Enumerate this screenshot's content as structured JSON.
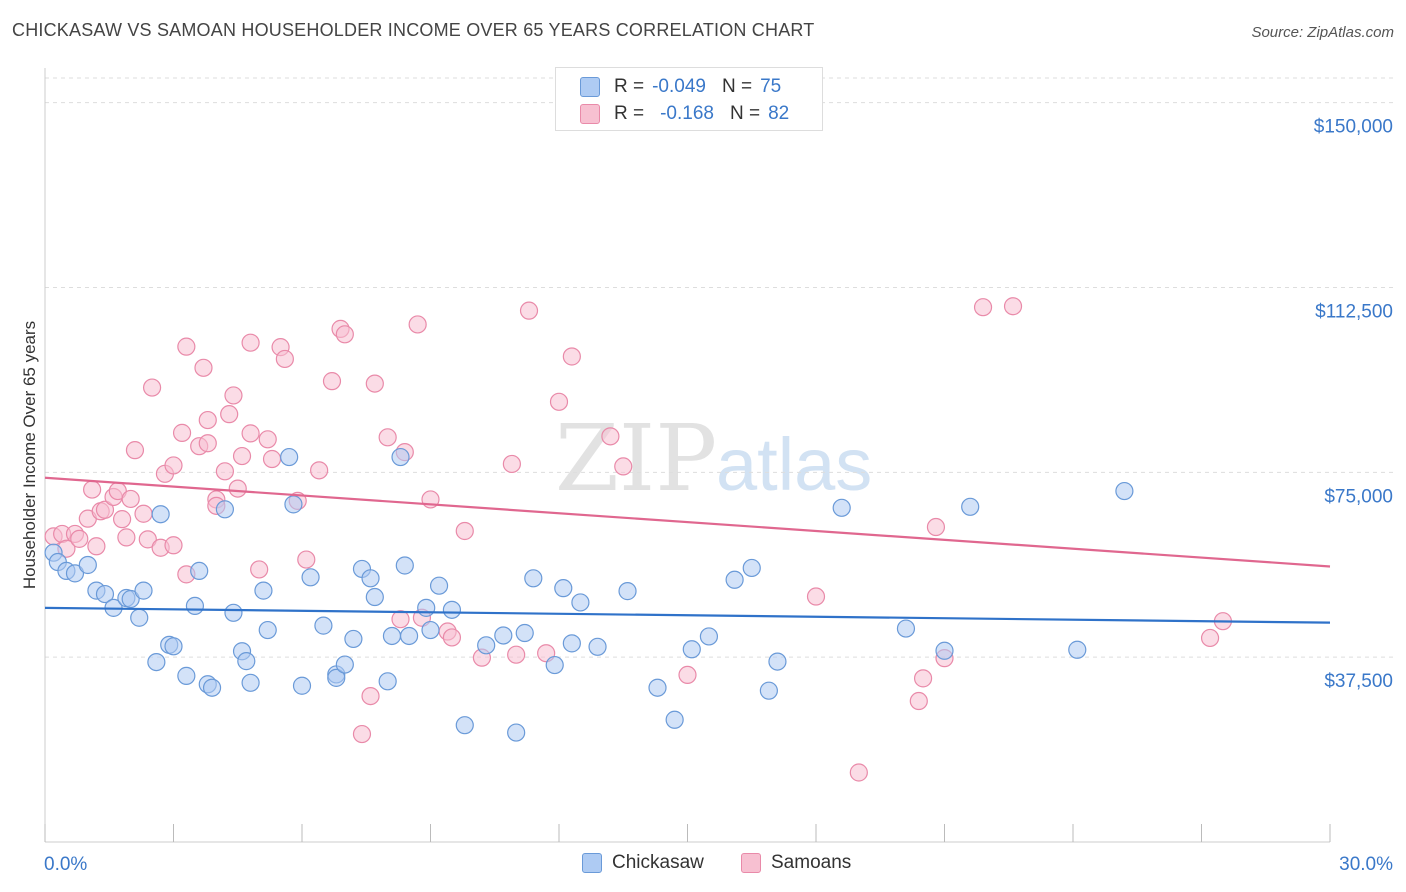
{
  "title": "CHICKASAW VS SAMOAN HOUSEHOLDER INCOME OVER 65 YEARS CORRELATION CHART",
  "source": "Source: ZipAtlas.com",
  "watermark": {
    "zip": "ZIP",
    "atlas": "atlas"
  },
  "legend": {
    "rows": [
      {
        "r_label": "R =",
        "r_value": "-0.049",
        "n_label": "N =",
        "n_value": "75"
      },
      {
        "r_label": "R =",
        "r_value": "-0.168",
        "n_label": "N =",
        "n_value": "82"
      }
    ]
  },
  "bottom_legend": [
    {
      "label": "Chickasaw"
    },
    {
      "label": "Samoans"
    }
  ],
  "colors": {
    "blue_fill": "#aecbf3",
    "blue_stroke": "#6a9ad8",
    "blue_line": "#2f72c9",
    "pink_fill": "#f7c0d1",
    "pink_stroke": "#e98aa9",
    "pink_line": "#e0678f",
    "tick_text": "#3a78c9",
    "grid": "#dddddd"
  },
  "chart_data": {
    "type": "scatter",
    "title": "CHICKASAW VS SAMOAN HOUSEHOLDER INCOME OVER 65 YEARS CORRELATION CHART",
    "xlabel": "",
    "ylabel": "Householder Income Over 65 years",
    "xlim": [
      0,
      30
    ],
    "ylim": [
      0,
      155000
    ],
    "x_tick_labels": [
      "0.0%",
      "30.0%"
    ],
    "y_ticks": [
      37500,
      75000,
      112500,
      150000
    ],
    "y_tick_labels": [
      "$37,500",
      "$75,000",
      "$112,500",
      "$150,000"
    ],
    "grid": true,
    "legend_position": "top-center",
    "series": [
      {
        "name": "Chickasaw",
        "color": "blue",
        "trend": {
          "x": [
            0,
            30
          ],
          "y": [
            47500,
            44500
          ]
        },
        "points": [
          [
            0.2,
            58700
          ],
          [
            0.3,
            56800
          ],
          [
            0.5,
            55000
          ],
          [
            0.7,
            54500
          ],
          [
            1.0,
            56200
          ],
          [
            1.2,
            51000
          ],
          [
            1.4,
            50300
          ],
          [
            1.6,
            47500
          ],
          [
            1.9,
            49500
          ],
          [
            2.0,
            49300
          ],
          [
            2.2,
            45500
          ],
          [
            2.3,
            51000
          ],
          [
            2.6,
            36500
          ],
          [
            2.7,
            66500
          ],
          [
            2.9,
            40000
          ],
          [
            3.0,
            39700
          ],
          [
            3.3,
            33700
          ],
          [
            3.5,
            47900
          ],
          [
            3.6,
            55000
          ],
          [
            3.8,
            32000
          ],
          [
            3.9,
            31300
          ],
          [
            4.2,
            67500
          ],
          [
            4.4,
            46500
          ],
          [
            4.6,
            38700
          ],
          [
            4.7,
            36700
          ],
          [
            4.8,
            32300
          ],
          [
            5.1,
            51000
          ],
          [
            5.2,
            43000
          ],
          [
            5.7,
            78100
          ],
          [
            5.8,
            68500
          ],
          [
            6.0,
            31700
          ],
          [
            6.2,
            53700
          ],
          [
            6.5,
            43900
          ],
          [
            6.8,
            34000
          ],
          [
            6.8,
            33300
          ],
          [
            7.0,
            36000
          ],
          [
            7.2,
            41200
          ],
          [
            7.4,
            55400
          ],
          [
            7.6,
            53500
          ],
          [
            7.7,
            49700
          ],
          [
            8.0,
            32600
          ],
          [
            8.1,
            41800
          ],
          [
            8.3,
            78100
          ],
          [
            8.4,
            56100
          ],
          [
            8.5,
            41800
          ],
          [
            8.9,
            47500
          ],
          [
            9.0,
            43000
          ],
          [
            9.2,
            52000
          ],
          [
            9.5,
            47100
          ],
          [
            9.8,
            23700
          ],
          [
            10.3,
            39900
          ],
          [
            10.7,
            41900
          ],
          [
            11.0,
            22200
          ],
          [
            11.2,
            42400
          ],
          [
            11.4,
            53500
          ],
          [
            11.9,
            35900
          ],
          [
            12.1,
            51500
          ],
          [
            12.3,
            40300
          ],
          [
            12.5,
            48600
          ],
          [
            12.9,
            39600
          ],
          [
            13.6,
            50900
          ],
          [
            14.3,
            31300
          ],
          [
            14.7,
            24800
          ],
          [
            15.1,
            39100
          ],
          [
            15.5,
            41700
          ],
          [
            16.1,
            53200
          ],
          [
            16.5,
            55600
          ],
          [
            16.9,
            30700
          ],
          [
            17.1,
            36600
          ],
          [
            18.6,
            67800
          ],
          [
            20.1,
            43300
          ],
          [
            21.0,
            38800
          ],
          [
            21.6,
            68000
          ],
          [
            24.1,
            39000
          ],
          [
            25.2,
            71200
          ]
        ]
      },
      {
        "name": "Samoans",
        "color": "pink",
        "trend": {
          "x": [
            0,
            30
          ],
          "y": [
            73900,
            55900
          ]
        },
        "points": [
          [
            0.2,
            62000
          ],
          [
            0.4,
            62500
          ],
          [
            0.5,
            59500
          ],
          [
            0.7,
            62500
          ],
          [
            0.8,
            61500
          ],
          [
            1.0,
            65600
          ],
          [
            1.1,
            71500
          ],
          [
            1.2,
            60000
          ],
          [
            1.3,
            67100
          ],
          [
            1.4,
            67400
          ],
          [
            1.6,
            70000
          ],
          [
            1.7,
            71200
          ],
          [
            1.8,
            65500
          ],
          [
            1.9,
            61800
          ],
          [
            2.0,
            69600
          ],
          [
            2.1,
            79500
          ],
          [
            2.3,
            66600
          ],
          [
            2.4,
            61400
          ],
          [
            2.5,
            92200
          ],
          [
            2.7,
            59700
          ],
          [
            2.8,
            74700
          ],
          [
            3.0,
            60200
          ],
          [
            3.0,
            76400
          ],
          [
            3.2,
            83000
          ],
          [
            3.3,
            100500
          ],
          [
            3.3,
            54300
          ],
          [
            3.6,
            80300
          ],
          [
            3.7,
            96200
          ],
          [
            3.8,
            85600
          ],
          [
            3.8,
            80900
          ],
          [
            4.0,
            69500
          ],
          [
            4.0,
            68200
          ],
          [
            4.2,
            75200
          ],
          [
            4.3,
            86800
          ],
          [
            4.4,
            90600
          ],
          [
            4.5,
            71700
          ],
          [
            4.6,
            78300
          ],
          [
            4.8,
            82900
          ],
          [
            4.8,
            101300
          ],
          [
            5.0,
            55300
          ],
          [
            5.2,
            81700
          ],
          [
            5.3,
            77700
          ],
          [
            5.5,
            100400
          ],
          [
            5.6,
            98000
          ],
          [
            5.9,
            69200
          ],
          [
            6.1,
            57300
          ],
          [
            6.4,
            75400
          ],
          [
            6.7,
            93500
          ],
          [
            6.9,
            104100
          ],
          [
            7.0,
            103000
          ],
          [
            7.4,
            21900
          ],
          [
            7.6,
            29600
          ],
          [
            7.7,
            93000
          ],
          [
            8.0,
            82100
          ],
          [
            8.3,
            45200
          ],
          [
            8.4,
            79100
          ],
          [
            8.7,
            105000
          ],
          [
            8.8,
            45500
          ],
          [
            9.0,
            69500
          ],
          [
            9.4,
            42700
          ],
          [
            9.5,
            41500
          ],
          [
            9.8,
            63100
          ],
          [
            10.2,
            37400
          ],
          [
            10.9,
            76700
          ],
          [
            11.0,
            38000
          ],
          [
            11.3,
            107800
          ],
          [
            11.7,
            38300
          ],
          [
            12.0,
            89300
          ],
          [
            12.3,
            98500
          ],
          [
            13.2,
            82300
          ],
          [
            13.5,
            76200
          ],
          [
            15.0,
            33900
          ],
          [
            18.0,
            49800
          ],
          [
            19.0,
            14100
          ],
          [
            20.4,
            28600
          ],
          [
            20.5,
            33200
          ],
          [
            20.8,
            63900
          ],
          [
            21.0,
            37300
          ],
          [
            21.9,
            108500
          ],
          [
            22.6,
            108700
          ],
          [
            27.2,
            41400
          ],
          [
            27.5,
            44800
          ]
        ]
      }
    ]
  }
}
